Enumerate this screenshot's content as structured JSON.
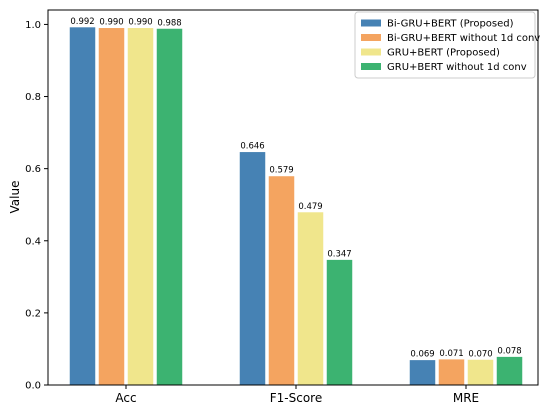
{
  "chart_data": {
    "type": "bar",
    "categories": [
      "Acc",
      "F1-Score",
      "MRE"
    ],
    "series": [
      {
        "name": "Bi-GRU+BERT (Proposed)",
        "values": [
          0.992,
          0.646,
          0.069
        ],
        "labels": [
          "0.992",
          "0.646",
          "0.069"
        ],
        "color": "#4682b4"
      },
      {
        "name": "Bi-GRU+BERT without 1d conv",
        "values": [
          0.99,
          0.579,
          0.071
        ],
        "labels": [
          "0.990",
          "0.579",
          "0.071"
        ],
        "color": "#f4a460"
      },
      {
        "name": "GRU+BERT (Proposed)",
        "values": [
          0.99,
          0.479,
          0.07
        ],
        "labels": [
          "0.990",
          "0.479",
          "0.070"
        ],
        "color": "#f0e68c"
      },
      {
        "name": "GRU+BERT without 1d conv",
        "values": [
          0.988,
          0.347,
          0.078
        ],
        "labels": [
          "0.988",
          "0.347",
          "0.078"
        ],
        "color": "#3cb371"
      }
    ],
    "title": "",
    "xlabel": "",
    "ylabel": "Value",
    "ylim": [
      0,
      1.04
    ],
    "yticks": [
      "0.0",
      "0.2",
      "0.4",
      "0.6",
      "0.8",
      "1.0"
    ],
    "grid": false,
    "legend": "top-right"
  }
}
